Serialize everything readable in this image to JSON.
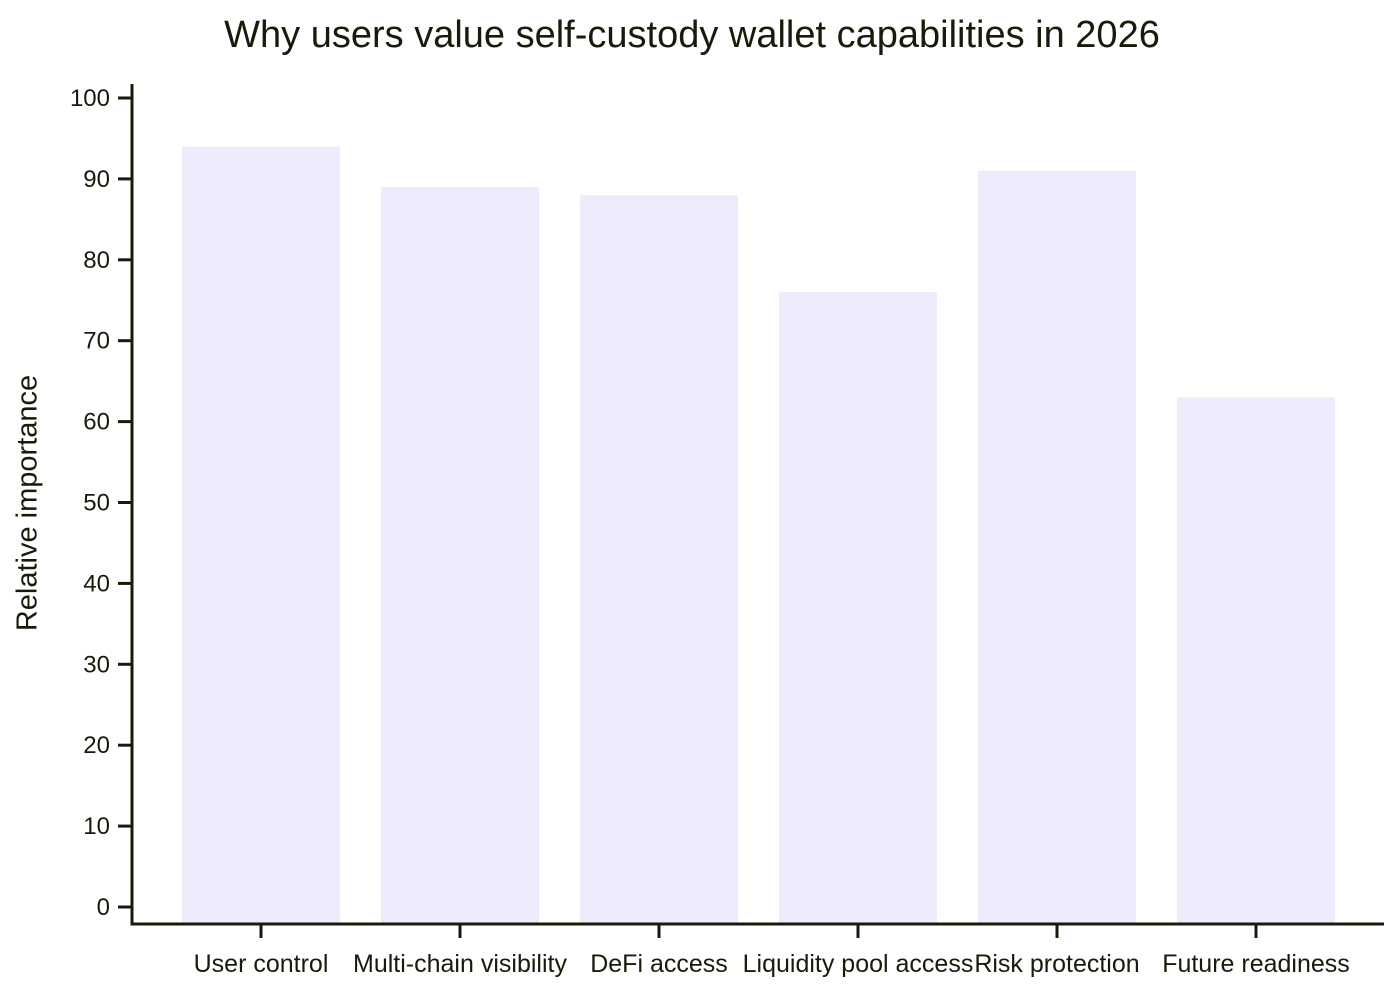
{
  "chart_data": {
    "type": "bar",
    "title": "Why users value self-custody wallet capabilities in 2026",
    "xlabel": "",
    "ylabel": "Relative importance",
    "categories": [
      "User control",
      "Multi-chain visibility",
      "DeFi access",
      "Liquidity pool access",
      "Risk protection",
      "Future readiness"
    ],
    "values": [
      94,
      89,
      88,
      76,
      91,
      63
    ],
    "ylim": [
      0,
      100
    ],
    "yticks": [
      "0",
      "10",
      "20",
      "30",
      "40",
      "50",
      "60",
      "70",
      "80",
      "90",
      "100"
    ],
    "bar_color": "#ececfc",
    "axis_color": "#1a1a0a",
    "grid": false,
    "legend": "none"
  }
}
